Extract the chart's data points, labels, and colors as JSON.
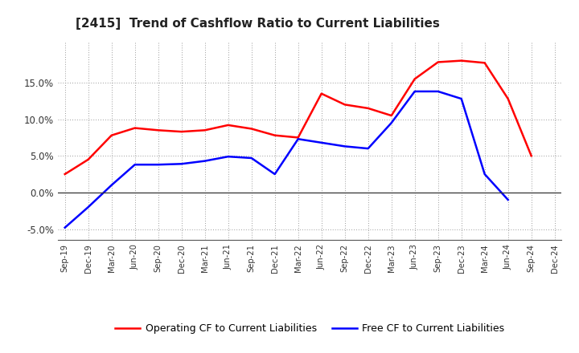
{
  "title": "[2415]  Trend of Cashflow Ratio to Current Liabilities",
  "x_labels": [
    "Sep-19",
    "Dec-19",
    "Mar-20",
    "Jun-20",
    "Sep-20",
    "Dec-20",
    "Mar-21",
    "Jun-21",
    "Sep-21",
    "Dec-21",
    "Mar-22",
    "Jun-22",
    "Sep-22",
    "Dec-22",
    "Mar-23",
    "Jun-23",
    "Sep-23",
    "Dec-23",
    "Mar-24",
    "Jun-24",
    "Sep-24",
    "Dec-24"
  ],
  "operating_cf": [
    2.5,
    4.5,
    7.8,
    8.8,
    8.5,
    8.3,
    8.5,
    9.2,
    8.7,
    7.8,
    7.5,
    13.5,
    12.0,
    11.5,
    10.5,
    15.5,
    17.8,
    18.0,
    17.7,
    12.8,
    5.0,
    null
  ],
  "free_cf": [
    -4.8,
    -2.0,
    1.0,
    3.8,
    3.8,
    3.9,
    4.3,
    4.9,
    4.7,
    2.5,
    7.3,
    6.8,
    6.3,
    6.0,
    9.5,
    13.8,
    13.8,
    12.8,
    2.5,
    -1.0,
    null,
    null
  ],
  "operating_color": "#ff0000",
  "free_color": "#0000ff",
  "ylim": [
    -6.5,
    20.5
  ],
  "yticks": [
    -5.0,
    0.0,
    5.0,
    10.0,
    15.0
  ],
  "plot_bg_color": "#ffffff",
  "grid_color": "#999999",
  "legend_operating": "Operating CF to Current Liabilities",
  "legend_free": "Free CF to Current Liabilities",
  "title_fontsize": 11,
  "line_width": 1.8
}
